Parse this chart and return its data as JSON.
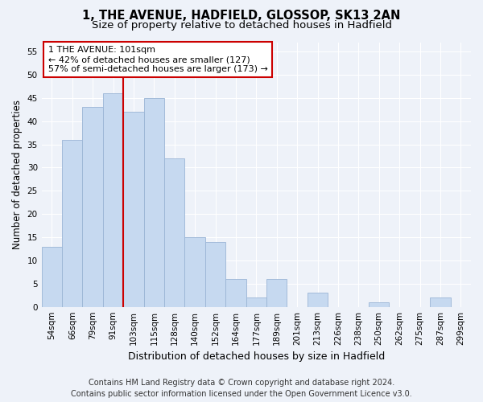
{
  "title1": "1, THE AVENUE, HADFIELD, GLOSSOP, SK13 2AN",
  "title2": "Size of property relative to detached houses in Hadfield",
  "xlabel": "Distribution of detached houses by size in Hadfield",
  "ylabel": "Number of detached properties",
  "categories": [
    "54sqm",
    "66sqm",
    "79sqm",
    "91sqm",
    "103sqm",
    "115sqm",
    "128sqm",
    "140sqm",
    "152sqm",
    "164sqm",
    "177sqm",
    "189sqm",
    "201sqm",
    "213sqm",
    "226sqm",
    "238sqm",
    "250sqm",
    "262sqm",
    "275sqm",
    "287sqm",
    "299sqm"
  ],
  "values": [
    13,
    36,
    43,
    46,
    42,
    45,
    32,
    15,
    14,
    6,
    2,
    6,
    0,
    3,
    0,
    0,
    1,
    0,
    0,
    2,
    0
  ],
  "bar_color": "#c6d9f0",
  "bar_edge_color": "#9ab5d5",
  "vline_index": 4,
  "vline_color": "#cc0000",
  "annotation_text": "1 THE AVENUE: 101sqm\n← 42% of detached houses are smaller (127)\n57% of semi-detached houses are larger (173) →",
  "annotation_box_facecolor": "#ffffff",
  "annotation_box_edgecolor": "#cc0000",
  "ylim": [
    0,
    57
  ],
  "yticks": [
    0,
    5,
    10,
    15,
    20,
    25,
    30,
    35,
    40,
    45,
    50,
    55
  ],
  "footnote": "Contains HM Land Registry data © Crown copyright and database right 2024.\nContains public sector information licensed under the Open Government Licence v3.0.",
  "background_color": "#eef2f9",
  "grid_color": "#ffffff",
  "title_fontsize": 10.5,
  "subtitle_fontsize": 9.5,
  "xlabel_fontsize": 9,
  "ylabel_fontsize": 8.5,
  "tick_fontsize": 7.5,
  "annotation_fontsize": 8,
  "footnote_fontsize": 7
}
